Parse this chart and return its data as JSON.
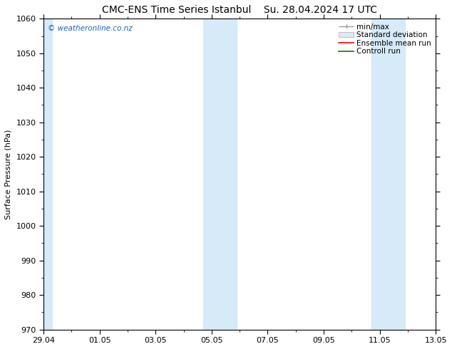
{
  "title": "CMC-ENS Time Series Istanbul    Su. 28.04.2024 17 UTC",
  "ylabel": "Surface Pressure (hPa)",
  "ylim": [
    970,
    1060
  ],
  "yticks": [
    970,
    980,
    990,
    1000,
    1010,
    1020,
    1030,
    1040,
    1050,
    1060
  ],
  "xlim": [
    0,
    14
  ],
  "xtick_labels": [
    "29.04",
    "01.05",
    "03.05",
    "05.05",
    "07.05",
    "09.05",
    "11.05",
    "13.05"
  ],
  "xtick_positions": [
    0,
    2,
    4,
    6,
    8,
    10,
    12,
    14
  ],
  "shaded_bands": [
    {
      "start": 0.0,
      "end": 0.3
    },
    {
      "start": 5.7,
      "end": 6.3
    },
    {
      "start": 6.3,
      "end": 6.9
    },
    {
      "start": 11.7,
      "end": 12.3
    },
    {
      "start": 12.3,
      "end": 12.9
    }
  ],
  "shade_color": "#d6eaf8",
  "watermark_text": "© weatheronline.co.nz",
  "watermark_color": "#1565c0",
  "legend_labels": [
    "min/max",
    "Standard deviation",
    "Ensemble mean run",
    "Controll run"
  ],
  "legend_colors_line": [
    "#999999",
    "#cccccc",
    "#ff0000",
    "#008000"
  ],
  "background_color": "#ffffff",
  "title_fontsize": 10,
  "axis_fontsize": 8,
  "tick_fontsize": 8,
  "legend_fontsize": 7.5
}
